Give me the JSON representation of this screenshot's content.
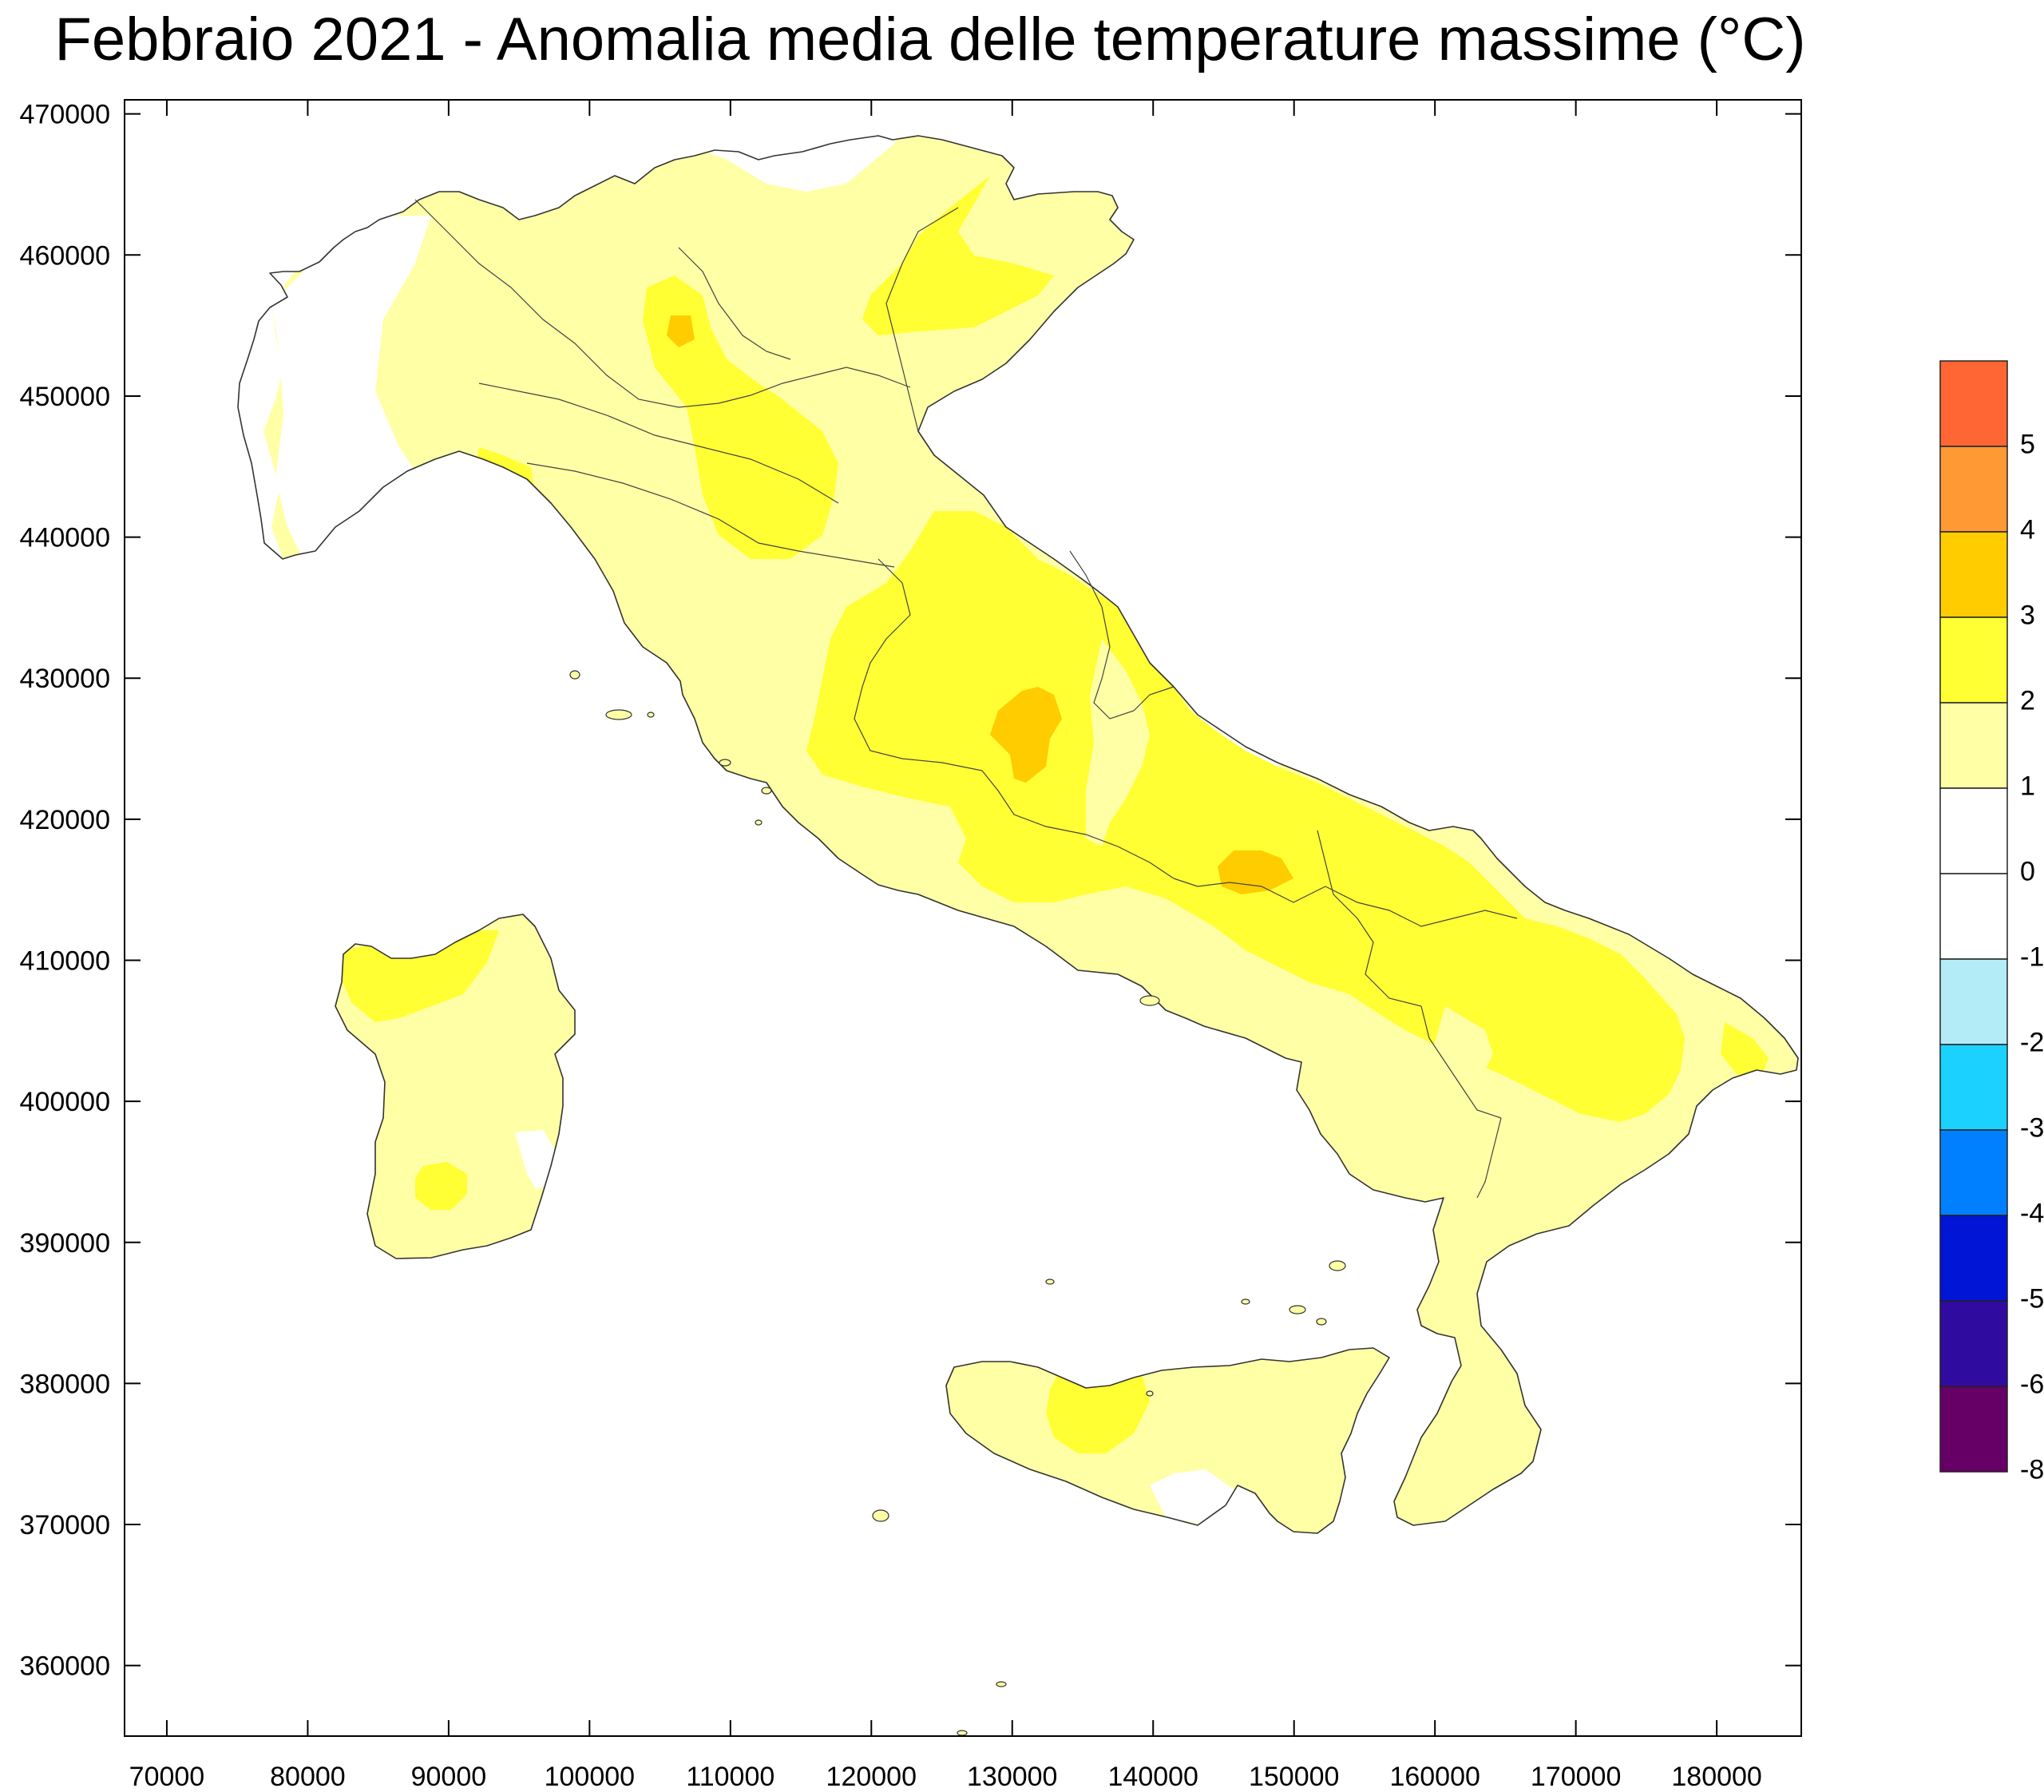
{
  "title": "Febbraio 2021 - Anomalia media delle temperature massime (°C)",
  "axes": {
    "x": {
      "min": 67000,
      "max": 186000,
      "ticks": [
        70000,
        80000,
        90000,
        100000,
        110000,
        120000,
        130000,
        140000,
        150000,
        160000,
        170000,
        180000
      ]
    },
    "y": {
      "min": 355000,
      "max": 471000,
      "ticks": [
        360000,
        370000,
        380000,
        390000,
        400000,
        410000,
        420000,
        430000,
        440000,
        450000,
        460000,
        470000
      ]
    }
  },
  "colorbar": {
    "classes": [
      {
        "color": "#ff6633"
      },
      {
        "color": "#ff9933"
      },
      {
        "color": "#ffcc00"
      },
      {
        "color": "#ffff33"
      },
      {
        "color": "#ffffa5"
      },
      {
        "color": "#ffffff"
      },
      {
        "color": "#ffffff"
      },
      {
        "color": "#b3ecf7"
      },
      {
        "color": "#1ad1ff"
      },
      {
        "color": "#0080ff"
      },
      {
        "color": "#0015d5"
      },
      {
        "color": "#2f0c9f"
      },
      {
        "color": "#660066"
      }
    ],
    "labels": [
      "5",
      "4",
      "3",
      "2",
      "1",
      "0",
      "-1",
      "-2",
      "-3",
      "-4",
      "-5",
      "-6",
      "-8"
    ]
  },
  "map": {
    "land_color": "#ffffa5",
    "colors": {
      "white": "#ffffff",
      "light": "#ffffa5",
      "yellow": "#ffff33",
      "orange": "#ffcc00",
      "deep": "#f5b800"
    },
    "regions": [
      "mainland",
      "sardinia",
      "sicily"
    ]
  }
}
